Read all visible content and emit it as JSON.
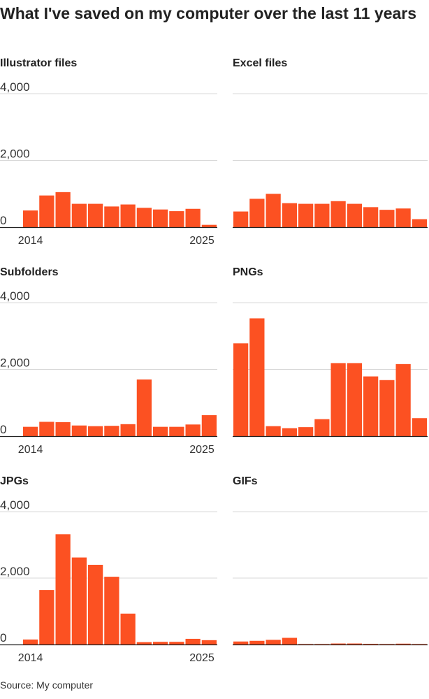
{
  "title": "What I've saved on my computer over the last 11 years",
  "source": "Source: My computer",
  "colors": {
    "bar": "#fc5122",
    "grid": "#d8d8d8",
    "baseline": "#222222"
  },
  "chart_data": [
    {
      "type": "bar",
      "title": "Illustrator files",
      "categories": [
        "2014",
        "2015",
        "2016",
        "2017",
        "2018",
        "2019",
        "2020",
        "2021",
        "2022",
        "2023",
        "2024",
        "2025"
      ],
      "values": [
        500,
        950,
        1050,
        700,
        700,
        620,
        680,
        580,
        530,
        480,
        550,
        70
      ],
      "ylim": [
        0,
        4000
      ],
      "yticks": [
        "0",
        "2,000",
        "4,000"
      ],
      "xticks": [
        "2014",
        "2025"
      ],
      "grid": true
    },
    {
      "type": "bar",
      "title": "Excel files",
      "categories": [
        "2014",
        "2015",
        "2016",
        "2017",
        "2018",
        "2019",
        "2020",
        "2021",
        "2022",
        "2023",
        "2024",
        "2025"
      ],
      "values": [
        470,
        850,
        1000,
        720,
        700,
        700,
        780,
        700,
        600,
        520,
        560,
        240
      ],
      "ylim": [
        0,
        4000
      ],
      "yticks": [],
      "xticks": [],
      "grid": true
    },
    {
      "type": "bar",
      "title": "Subfolders",
      "categories": [
        "2014",
        "2015",
        "2016",
        "2017",
        "2018",
        "2019",
        "2020",
        "2021",
        "2022",
        "2023",
        "2024",
        "2025"
      ],
      "values": [
        280,
        430,
        420,
        320,
        300,
        310,
        360,
        1700,
        280,
        280,
        350,
        630
      ],
      "ylim": [
        0,
        4000
      ],
      "yticks": [
        "0",
        "2,000",
        "4,000"
      ],
      "xticks": [
        "2014",
        "2025"
      ],
      "grid": true
    },
    {
      "type": "bar",
      "title": "PNGs",
      "categories": [
        "2014",
        "2015",
        "2016",
        "2017",
        "2018",
        "2019",
        "2020",
        "2021",
        "2022",
        "2023",
        "2024",
        "2025"
      ],
      "values": [
        2780,
        3530,
        300,
        240,
        270,
        510,
        2190,
        2190,
        1790,
        1680,
        2160,
        540
      ],
      "ylim": [
        0,
        4000
      ],
      "yticks": [],
      "xticks": [],
      "grid": true
    },
    {
      "type": "bar",
      "title": "JPGs",
      "categories": [
        "2014",
        "2015",
        "2016",
        "2017",
        "2018",
        "2019",
        "2020",
        "2021",
        "2022",
        "2023",
        "2024",
        "2025"
      ],
      "values": [
        150,
        1640,
        3320,
        2620,
        2400,
        2040,
        930,
        70,
        80,
        80,
        170,
        130
      ],
      "ylim": [
        0,
        4000
      ],
      "yticks": [
        "0",
        "2,000",
        "4,000"
      ],
      "xticks": [
        "2014",
        "2025"
      ],
      "grid": true
    },
    {
      "type": "bar",
      "title": "GIFs",
      "categories": [
        "2014",
        "2015",
        "2016",
        "2017",
        "2018",
        "2019",
        "2020",
        "2021",
        "2022",
        "2023",
        "2024",
        "2025"
      ],
      "values": [
        90,
        110,
        140,
        200,
        15,
        15,
        30,
        30,
        20,
        15,
        25,
        15
      ],
      "ylim": [
        0,
        4000
      ],
      "yticks": [],
      "xticks": [],
      "grid": true
    }
  ]
}
